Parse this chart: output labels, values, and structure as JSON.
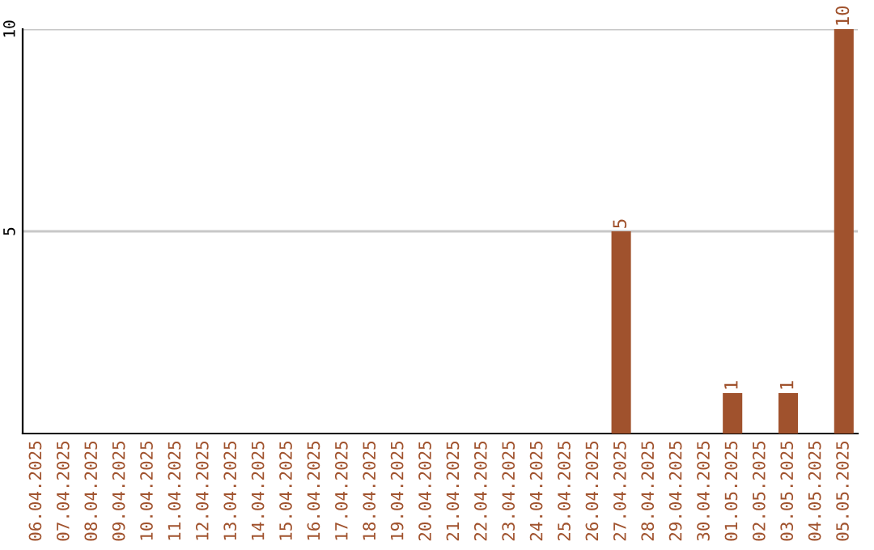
{
  "chart_data": {
    "type": "bar",
    "categories": [
      "06.04.2025",
      "07.04.2025",
      "08.04.2025",
      "09.04.2025",
      "10.04.2025",
      "11.04.2025",
      "12.04.2025",
      "13.04.2025",
      "14.04.2025",
      "15.04.2025",
      "16.04.2025",
      "17.04.2025",
      "18.04.2025",
      "19.04.2025",
      "20.04.2025",
      "21.04.2025",
      "22.04.2025",
      "23.04.2025",
      "24.04.2025",
      "25.04.2025",
      "26.04.2025",
      "27.04.2025",
      "28.04.2025",
      "29.04.2025",
      "30.04.2025",
      "01.05.2025",
      "02.05.2025",
      "03.05.2025",
      "04.05.2025",
      "05.05.2025"
    ],
    "values": [
      0,
      0,
      0,
      0,
      0,
      0,
      0,
      0,
      0,
      0,
      0,
      0,
      0,
      0,
      0,
      0,
      0,
      0,
      0,
      0,
      0,
      5,
      0,
      0,
      0,
      1,
      0,
      1,
      0,
      10
    ],
    "value_labels": [
      null,
      null,
      null,
      null,
      null,
      null,
      null,
      null,
      null,
      null,
      null,
      null,
      null,
      null,
      null,
      null,
      null,
      null,
      null,
      null,
      null,
      "5",
      null,
      null,
      null,
      "1",
      null,
      "1",
      null,
      "10"
    ],
    "color": "#a0522d",
    "ylim": [
      0,
      10
    ],
    "yticks": [
      5,
      10
    ],
    "grid": "y"
  }
}
